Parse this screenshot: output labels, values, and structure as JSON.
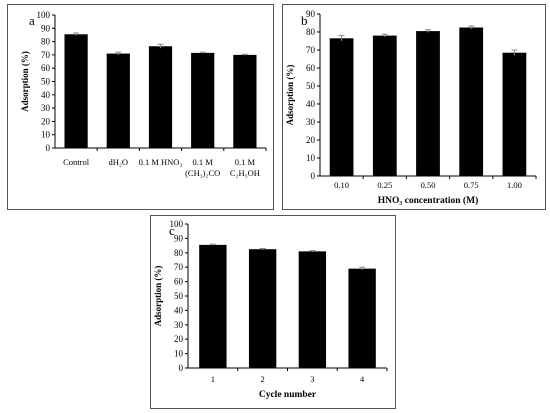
{
  "chart_data": [
    {
      "type": "bar",
      "panel_label": "a",
      "categories": [
        "Control",
        "dH2O",
        "0.1 M HNO3",
        "0.1 M (CH3)2CO",
        "0.1 M C2H5OH"
      ],
      "category_lines": [
        [
          "Control"
        ],
        [
          "dH₂O"
        ],
        [
          "0.1 M HNO₃"
        ],
        [
          "0.1 M",
          "(CH₃)₂CO"
        ],
        [
          "0.1 M",
          "C₂H₅OH"
        ]
      ],
      "values": [
        85.5,
        71,
        76.5,
        71.5,
        70
      ],
      "errors": [
        1.0,
        1.0,
        1.5,
        0.5,
        0.5
      ],
      "xlabel": "",
      "ylabel": "Adsorption (%)",
      "ylim": [
        0,
        100
      ],
      "yticks": [
        "0",
        "10",
        "20",
        "30",
        "40",
        "50",
        "60",
        "70",
        "80",
        "90",
        "100"
      ],
      "grid": false,
      "bar_color": "#000000"
    },
    {
      "type": "bar",
      "panel_label": "b",
      "categories": [
        "0.10",
        "0.25",
        "0.50",
        "0.75",
        "1.00"
      ],
      "values": [
        76.5,
        78,
        80.5,
        82.5,
        68.5
      ],
      "errors": [
        1.5,
        0.8,
        0.8,
        0.8,
        1.5
      ],
      "xlabel": "HNO₃ concentration (M)",
      "ylabel": "Adsorption (%)",
      "ylim": [
        0,
        90
      ],
      "yticks": [
        "0",
        "10",
        "20",
        "30",
        "40",
        "50",
        "60",
        "70",
        "80",
        "90"
      ],
      "grid": false,
      "bar_color": "#000000"
    },
    {
      "type": "bar",
      "panel_label": "c",
      "categories": [
        "1",
        "2",
        "3",
        "4"
      ],
      "values": [
        85.5,
        82.5,
        81,
        69
      ],
      "errors": [
        0.5,
        0.5,
        0.5,
        1.0
      ],
      "xlabel": "Cycle number",
      "ylabel": "Adsorption (%)",
      "ylim": [
        0,
        100
      ],
      "yticks": [
        "0",
        "10",
        "20",
        "30",
        "40",
        "50",
        "60",
        "70",
        "80",
        "90",
        "100"
      ],
      "grid": false,
      "bar_color": "#000000"
    }
  ]
}
